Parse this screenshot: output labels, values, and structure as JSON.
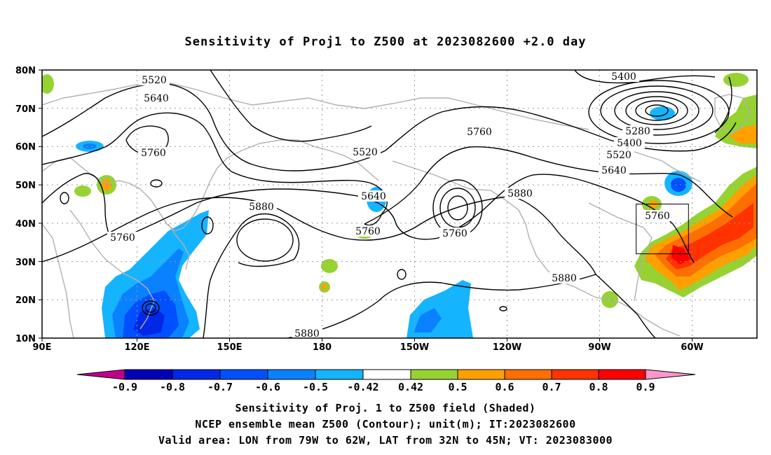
{
  "title": "Sensitivity of Proj1 to Z500 at 2023082600 +2.0 day",
  "axes": {
    "lat_labels": [
      "80N",
      "70N",
      "60N",
      "50N",
      "40N",
      "30N",
      "20N",
      "10N"
    ],
    "lon_labels": [
      "90E",
      "120E",
      "150E",
      "180",
      "150W",
      "120W",
      "90W",
      "60W"
    ]
  },
  "contour_labels": {
    "c5520a": "5520",
    "c5640a": "5640",
    "c5760a": "5760",
    "c5760b": "5760",
    "c5880a": "5880",
    "c5520b": "5520",
    "c5640b": "5640",
    "c5760c": "5760",
    "c5760d": "5760",
    "c5880b": "5880",
    "c5880c": "5880",
    "c5880d": "5880",
    "c5400a": "5400",
    "c5280": "5280",
    "c5400b": "5400",
    "c5520c": "5520",
    "c5640c": "5640",
    "c5760e": "5760"
  },
  "colorbar": {
    "labels": [
      "-0.9",
      "-0.8",
      "-0.7",
      "-0.6",
      "-0.5",
      "-0.42",
      "0.42",
      "0.5",
      "0.6",
      "0.7",
      "0.8",
      "0.9"
    ],
    "colors": [
      "#c0008c",
      "#0000b4",
      "#0028e6",
      "#0050ff",
      "#0a82ff",
      "#14b4ff",
      "#00d2ff",
      "#ffffff",
      "#96d232",
      "#ffa000",
      "#ff6e00",
      "#ff3200",
      "#ff0000",
      "#ff96c8"
    ]
  },
  "valid_area": {
    "lon_from": "79W",
    "lon_to": "62W",
    "lat_from": "32N",
    "lat_to": "45N"
  },
  "captions": {
    "line1": "Sensitivity of Proj. 1 to Z500 field (Shaded)",
    "line2": "NCEP ensemble mean Z500 (Contour); unit(m); IT:2023082600",
    "line3": "Valid area: LON from 79W to 62W, LAT from 32N to 45N; VT: 2023083000"
  }
}
